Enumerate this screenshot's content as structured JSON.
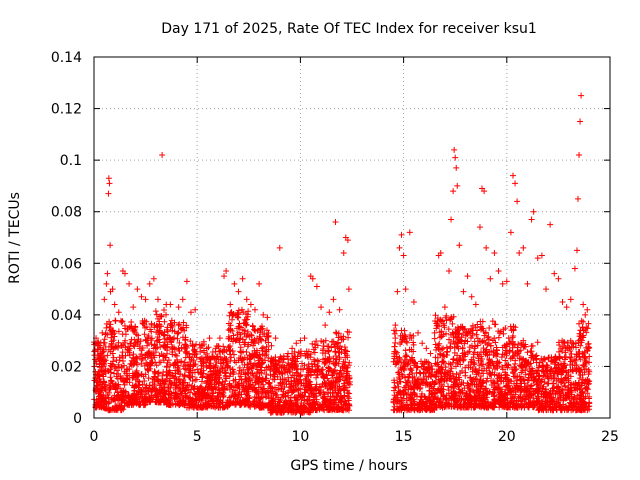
{
  "chart_data": {
    "type": "scatter",
    "title": "Day 171 of 2025, Rate Of TEC Index for receiver ksu1",
    "xlabel": "GPS time / hours",
    "ylabel": "ROTI / TECUs",
    "xlim": [
      0,
      25
    ],
    "ylim": [
      0,
      0.14
    ],
    "xticks": [
      0,
      5,
      10,
      15,
      20,
      25
    ],
    "yticks": [
      0,
      0.02,
      0.04,
      0.06,
      0.08,
      0.1,
      0.12,
      0.14
    ],
    "xtick_labels": [
      "0",
      "5",
      "10",
      "15",
      "20",
      "25"
    ],
    "ytick_labels": [
      "0",
      "0.02",
      "0.04",
      "0.06",
      "0.08",
      "0.1",
      "0.12",
      "0.14"
    ],
    "grid": true,
    "marker": "+",
    "color": "#ff0000",
    "series": [
      {
        "name": "ROTI",
        "points": [
          [
            0.1,
            0.031
          ],
          [
            0.2,
            0.028
          ],
          [
            0.3,
            0.025
          ],
          [
            0.4,
            0.033
          ],
          [
            0.5,
            0.046
          ],
          [
            0.6,
            0.052
          ],
          [
            0.65,
            0.056
          ],
          [
            0.7,
            0.087
          ],
          [
            0.72,
            0.093
          ],
          [
            0.75,
            0.091
          ],
          [
            0.78,
            0.067
          ],
          [
            0.8,
            0.049
          ],
          [
            0.9,
            0.05
          ],
          [
            1.0,
            0.044
          ],
          [
            1.2,
            0.041
          ],
          [
            1.4,
            0.057
          ],
          [
            1.5,
            0.056
          ],
          [
            1.7,
            0.052
          ],
          [
            1.9,
            0.043
          ],
          [
            2.1,
            0.05
          ],
          [
            2.3,
            0.047
          ],
          [
            2.5,
            0.046
          ],
          [
            2.7,
            0.052
          ],
          [
            2.9,
            0.054
          ],
          [
            3.1,
            0.046
          ],
          [
            3.3,
            0.102
          ],
          [
            3.5,
            0.044
          ],
          [
            3.7,
            0.044
          ],
          [
            3.9,
            0.037
          ],
          [
            4.1,
            0.043
          ],
          [
            4.3,
            0.046
          ],
          [
            4.5,
            0.053
          ],
          [
            4.7,
            0.041
          ],
          [
            4.9,
            0.042
          ],
          [
            5.3,
            0.022
          ],
          [
            5.6,
            0.031
          ],
          [
            5.9,
            0.027
          ],
          [
            6.1,
            0.031
          ],
          [
            6.3,
            0.055
          ],
          [
            6.4,
            0.057
          ],
          [
            6.6,
            0.044
          ],
          [
            6.8,
            0.052
          ],
          [
            7.0,
            0.049
          ],
          [
            7.2,
            0.054
          ],
          [
            7.4,
            0.046
          ],
          [
            7.6,
            0.044
          ],
          [
            7.8,
            0.042
          ],
          [
            8.0,
            0.052
          ],
          [
            8.2,
            0.04
          ],
          [
            8.4,
            0.039
          ],
          [
            8.6,
            0.028
          ],
          [
            8.8,
            0.031
          ],
          [
            9.0,
            0.066
          ],
          [
            9.2,
            0.024
          ],
          [
            9.4,
            0.025
          ],
          [
            9.6,
            0.027
          ],
          [
            9.8,
            0.029
          ],
          [
            10.0,
            0.03
          ],
          [
            10.2,
            0.031
          ],
          [
            10.5,
            0.055
          ],
          [
            10.6,
            0.054
          ],
          [
            10.8,
            0.051
          ],
          [
            11.0,
            0.043
          ],
          [
            11.2,
            0.036
          ],
          [
            11.4,
            0.041
          ],
          [
            11.6,
            0.046
          ],
          [
            11.7,
            0.076
          ],
          [
            11.9,
            0.042
          ],
          [
            12.1,
            0.064
          ],
          [
            12.2,
            0.07
          ],
          [
            12.3,
            0.069
          ],
          [
            12.35,
            0.05
          ],
          [
            14.6,
            0.036
          ],
          [
            14.7,
            0.049
          ],
          [
            14.8,
            0.066
          ],
          [
            14.9,
            0.071
          ],
          [
            15.0,
            0.063
          ],
          [
            15.1,
            0.05
          ],
          [
            15.3,
            0.072
          ],
          [
            15.5,
            0.045
          ],
          [
            15.7,
            0.033
          ],
          [
            15.9,
            0.029
          ],
          [
            16.1,
            0.027
          ],
          [
            16.3,
            0.025
          ],
          [
            16.5,
            0.033
          ],
          [
            16.7,
            0.063
          ],
          [
            16.8,
            0.064
          ],
          [
            17.0,
            0.043
          ],
          [
            17.2,
            0.057
          ],
          [
            17.3,
            0.077
          ],
          [
            17.4,
            0.088
          ],
          [
            17.45,
            0.104
          ],
          [
            17.5,
            0.101
          ],
          [
            17.55,
            0.097
          ],
          [
            17.6,
            0.09
          ],
          [
            17.7,
            0.067
          ],
          [
            17.9,
            0.049
          ],
          [
            18.1,
            0.055
          ],
          [
            18.3,
            0.047
          ],
          [
            18.5,
            0.044
          ],
          [
            18.7,
            0.074
          ],
          [
            18.8,
            0.089
          ],
          [
            18.9,
            0.088
          ],
          [
            19.0,
            0.066
          ],
          [
            19.2,
            0.054
          ],
          [
            19.4,
            0.064
          ],
          [
            19.6,
            0.057
          ],
          [
            19.8,
            0.052
          ],
          [
            20.0,
            0.053
          ],
          [
            20.2,
            0.072
          ],
          [
            20.3,
            0.094
          ],
          [
            20.4,
            0.091
          ],
          [
            20.5,
            0.084
          ],
          [
            20.6,
            0.064
          ],
          [
            20.8,
            0.066
          ],
          [
            21.0,
            0.052
          ],
          [
            21.2,
            0.077
          ],
          [
            21.3,
            0.08
          ],
          [
            21.5,
            0.062
          ],
          [
            21.7,
            0.063
          ],
          [
            21.9,
            0.05
          ],
          [
            22.1,
            0.075
          ],
          [
            22.3,
            0.056
          ],
          [
            22.5,
            0.054
          ],
          [
            22.7,
            0.045
          ],
          [
            22.9,
            0.043
          ],
          [
            23.1,
            0.046
          ],
          [
            23.3,
            0.058
          ],
          [
            23.4,
            0.065
          ],
          [
            23.45,
            0.085
          ],
          [
            23.5,
            0.102
          ],
          [
            23.55,
            0.115
          ],
          [
            23.6,
            0.125
          ],
          [
            23.7,
            0.044
          ],
          [
            23.8,
            0.04
          ],
          [
            23.9,
            0.042
          ]
        ]
      }
    ],
    "dense_band": [
      {
        "x_start": 0.0,
        "x_end": 0.5,
        "y_min": 0.004,
        "y_max": 0.03,
        "n": 140
      },
      {
        "x_start": 0.5,
        "x_end": 1.5,
        "y_min": 0.003,
        "y_max": 0.038,
        "n": 200
      },
      {
        "x_start": 1.5,
        "x_end": 2.5,
        "y_min": 0.005,
        "y_max": 0.038,
        "n": 200
      },
      {
        "x_start": 2.5,
        "x_end": 3.5,
        "y_min": 0.006,
        "y_max": 0.042,
        "n": 220
      },
      {
        "x_start": 3.5,
        "x_end": 4.5,
        "y_min": 0.005,
        "y_max": 0.038,
        "n": 220
      },
      {
        "x_start": 4.5,
        "x_end": 5.5,
        "y_min": 0.004,
        "y_max": 0.03,
        "n": 200
      },
      {
        "x_start": 5.5,
        "x_end": 6.5,
        "y_min": 0.004,
        "y_max": 0.028,
        "n": 200
      },
      {
        "x_start": 6.5,
        "x_end": 7.5,
        "y_min": 0.005,
        "y_max": 0.042,
        "n": 230
      },
      {
        "x_start": 7.5,
        "x_end": 8.5,
        "y_min": 0.004,
        "y_max": 0.036,
        "n": 220
      },
      {
        "x_start": 8.5,
        "x_end": 9.5,
        "y_min": 0.002,
        "y_max": 0.024,
        "n": 200
      },
      {
        "x_start": 9.5,
        "x_end": 10.5,
        "y_min": 0.002,
        "y_max": 0.026,
        "n": 200
      },
      {
        "x_start": 10.5,
        "x_end": 11.5,
        "y_min": 0.003,
        "y_max": 0.03,
        "n": 200
      },
      {
        "x_start": 11.5,
        "x_end": 12.4,
        "y_min": 0.003,
        "y_max": 0.034,
        "n": 200
      },
      {
        "x_start": 14.5,
        "x_end": 15.5,
        "y_min": 0.003,
        "y_max": 0.034,
        "n": 200
      },
      {
        "x_start": 15.5,
        "x_end": 16.5,
        "y_min": 0.003,
        "y_max": 0.022,
        "n": 180
      },
      {
        "x_start": 16.5,
        "x_end": 17.5,
        "y_min": 0.004,
        "y_max": 0.04,
        "n": 220
      },
      {
        "x_start": 17.5,
        "x_end": 18.5,
        "y_min": 0.004,
        "y_max": 0.036,
        "n": 220
      },
      {
        "x_start": 18.5,
        "x_end": 19.5,
        "y_min": 0.004,
        "y_max": 0.038,
        "n": 220
      },
      {
        "x_start": 19.5,
        "x_end": 20.5,
        "y_min": 0.004,
        "y_max": 0.036,
        "n": 220
      },
      {
        "x_start": 20.5,
        "x_end": 21.5,
        "y_min": 0.004,
        "y_max": 0.03,
        "n": 200
      },
      {
        "x_start": 21.5,
        "x_end": 22.5,
        "y_min": 0.003,
        "y_max": 0.024,
        "n": 200
      },
      {
        "x_start": 22.5,
        "x_end": 23.5,
        "y_min": 0.003,
        "y_max": 0.03,
        "n": 200
      },
      {
        "x_start": 23.5,
        "x_end": 24.0,
        "y_min": 0.003,
        "y_max": 0.038,
        "n": 140
      }
    ]
  }
}
